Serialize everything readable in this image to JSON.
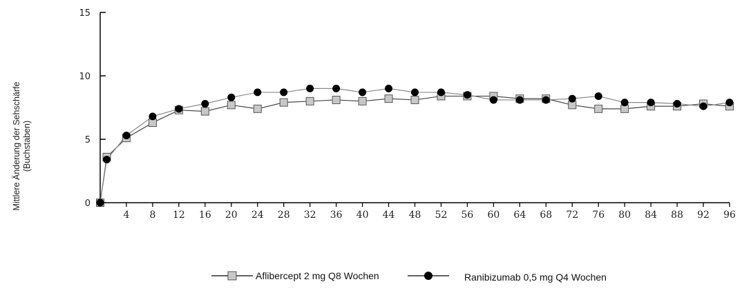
{
  "chart_data": {
    "type": "line",
    "title": "",
    "xlabel": "",
    "ylabel_line1": "Mittlere Änderung der Sehschärfe",
    "ylabel_line2": "(Buchstaben)",
    "xlim": [
      0,
      96
    ],
    "ylim": [
      0,
      15
    ],
    "x_ticks": [
      "4",
      "8",
      "12",
      "16",
      "20",
      "24",
      "28",
      "32",
      "36",
      "40",
      "44",
      "48",
      "52",
      "56",
      "60",
      "64",
      "68",
      "72",
      "76",
      "80",
      "84",
      "88",
      "92",
      "96"
    ],
    "y_ticks": [
      "0",
      "5",
      "10",
      "15"
    ],
    "grid": false,
    "legend_position": "bottom",
    "series": [
      {
        "name": "Aflibercept 2 mg Q8 Wochen",
        "marker": "square",
        "color": "#c8c8c8",
        "x": [
          0,
          1,
          4,
          8,
          12,
          16,
          20,
          24,
          28,
          32,
          36,
          40,
          44,
          48,
          52,
          56,
          60,
          64,
          68,
          72,
          76,
          80,
          84,
          88,
          92,
          96
        ],
        "y": [
          0,
          3.6,
          5.1,
          6.3,
          7.3,
          7.2,
          7.7,
          7.4,
          7.9,
          8.0,
          8.1,
          8.0,
          8.2,
          8.1,
          8.4,
          8.4,
          8.4,
          8.2,
          8.2,
          7.7,
          7.4,
          7.4,
          7.6,
          7.6,
          7.8,
          7.6
        ]
      },
      {
        "name": "Ranibizumab 0,5 mg Q4 Wochen",
        "marker": "circle",
        "color": "#000000",
        "x": [
          0,
          1,
          4,
          8,
          12,
          16,
          20,
          24,
          28,
          32,
          36,
          40,
          44,
          48,
          52,
          56,
          60,
          64,
          68,
          72,
          76,
          80,
          84,
          88,
          92,
          96
        ],
        "y": [
          0,
          3.4,
          5.3,
          6.8,
          7.4,
          7.8,
          8.3,
          8.7,
          8.7,
          9.0,
          9.0,
          8.7,
          9.0,
          8.7,
          8.7,
          8.5,
          8.1,
          8.1,
          8.1,
          8.2,
          8.4,
          7.9,
          7.9,
          7.8,
          7.6,
          7.9
        ]
      }
    ]
  },
  "legend": {
    "aflibercept_label": "Aflibercept 2 mg Q8 Wochen",
    "ranibizumab_label": "Ranibizumab 0,5 mg Q4 Wochen"
  }
}
